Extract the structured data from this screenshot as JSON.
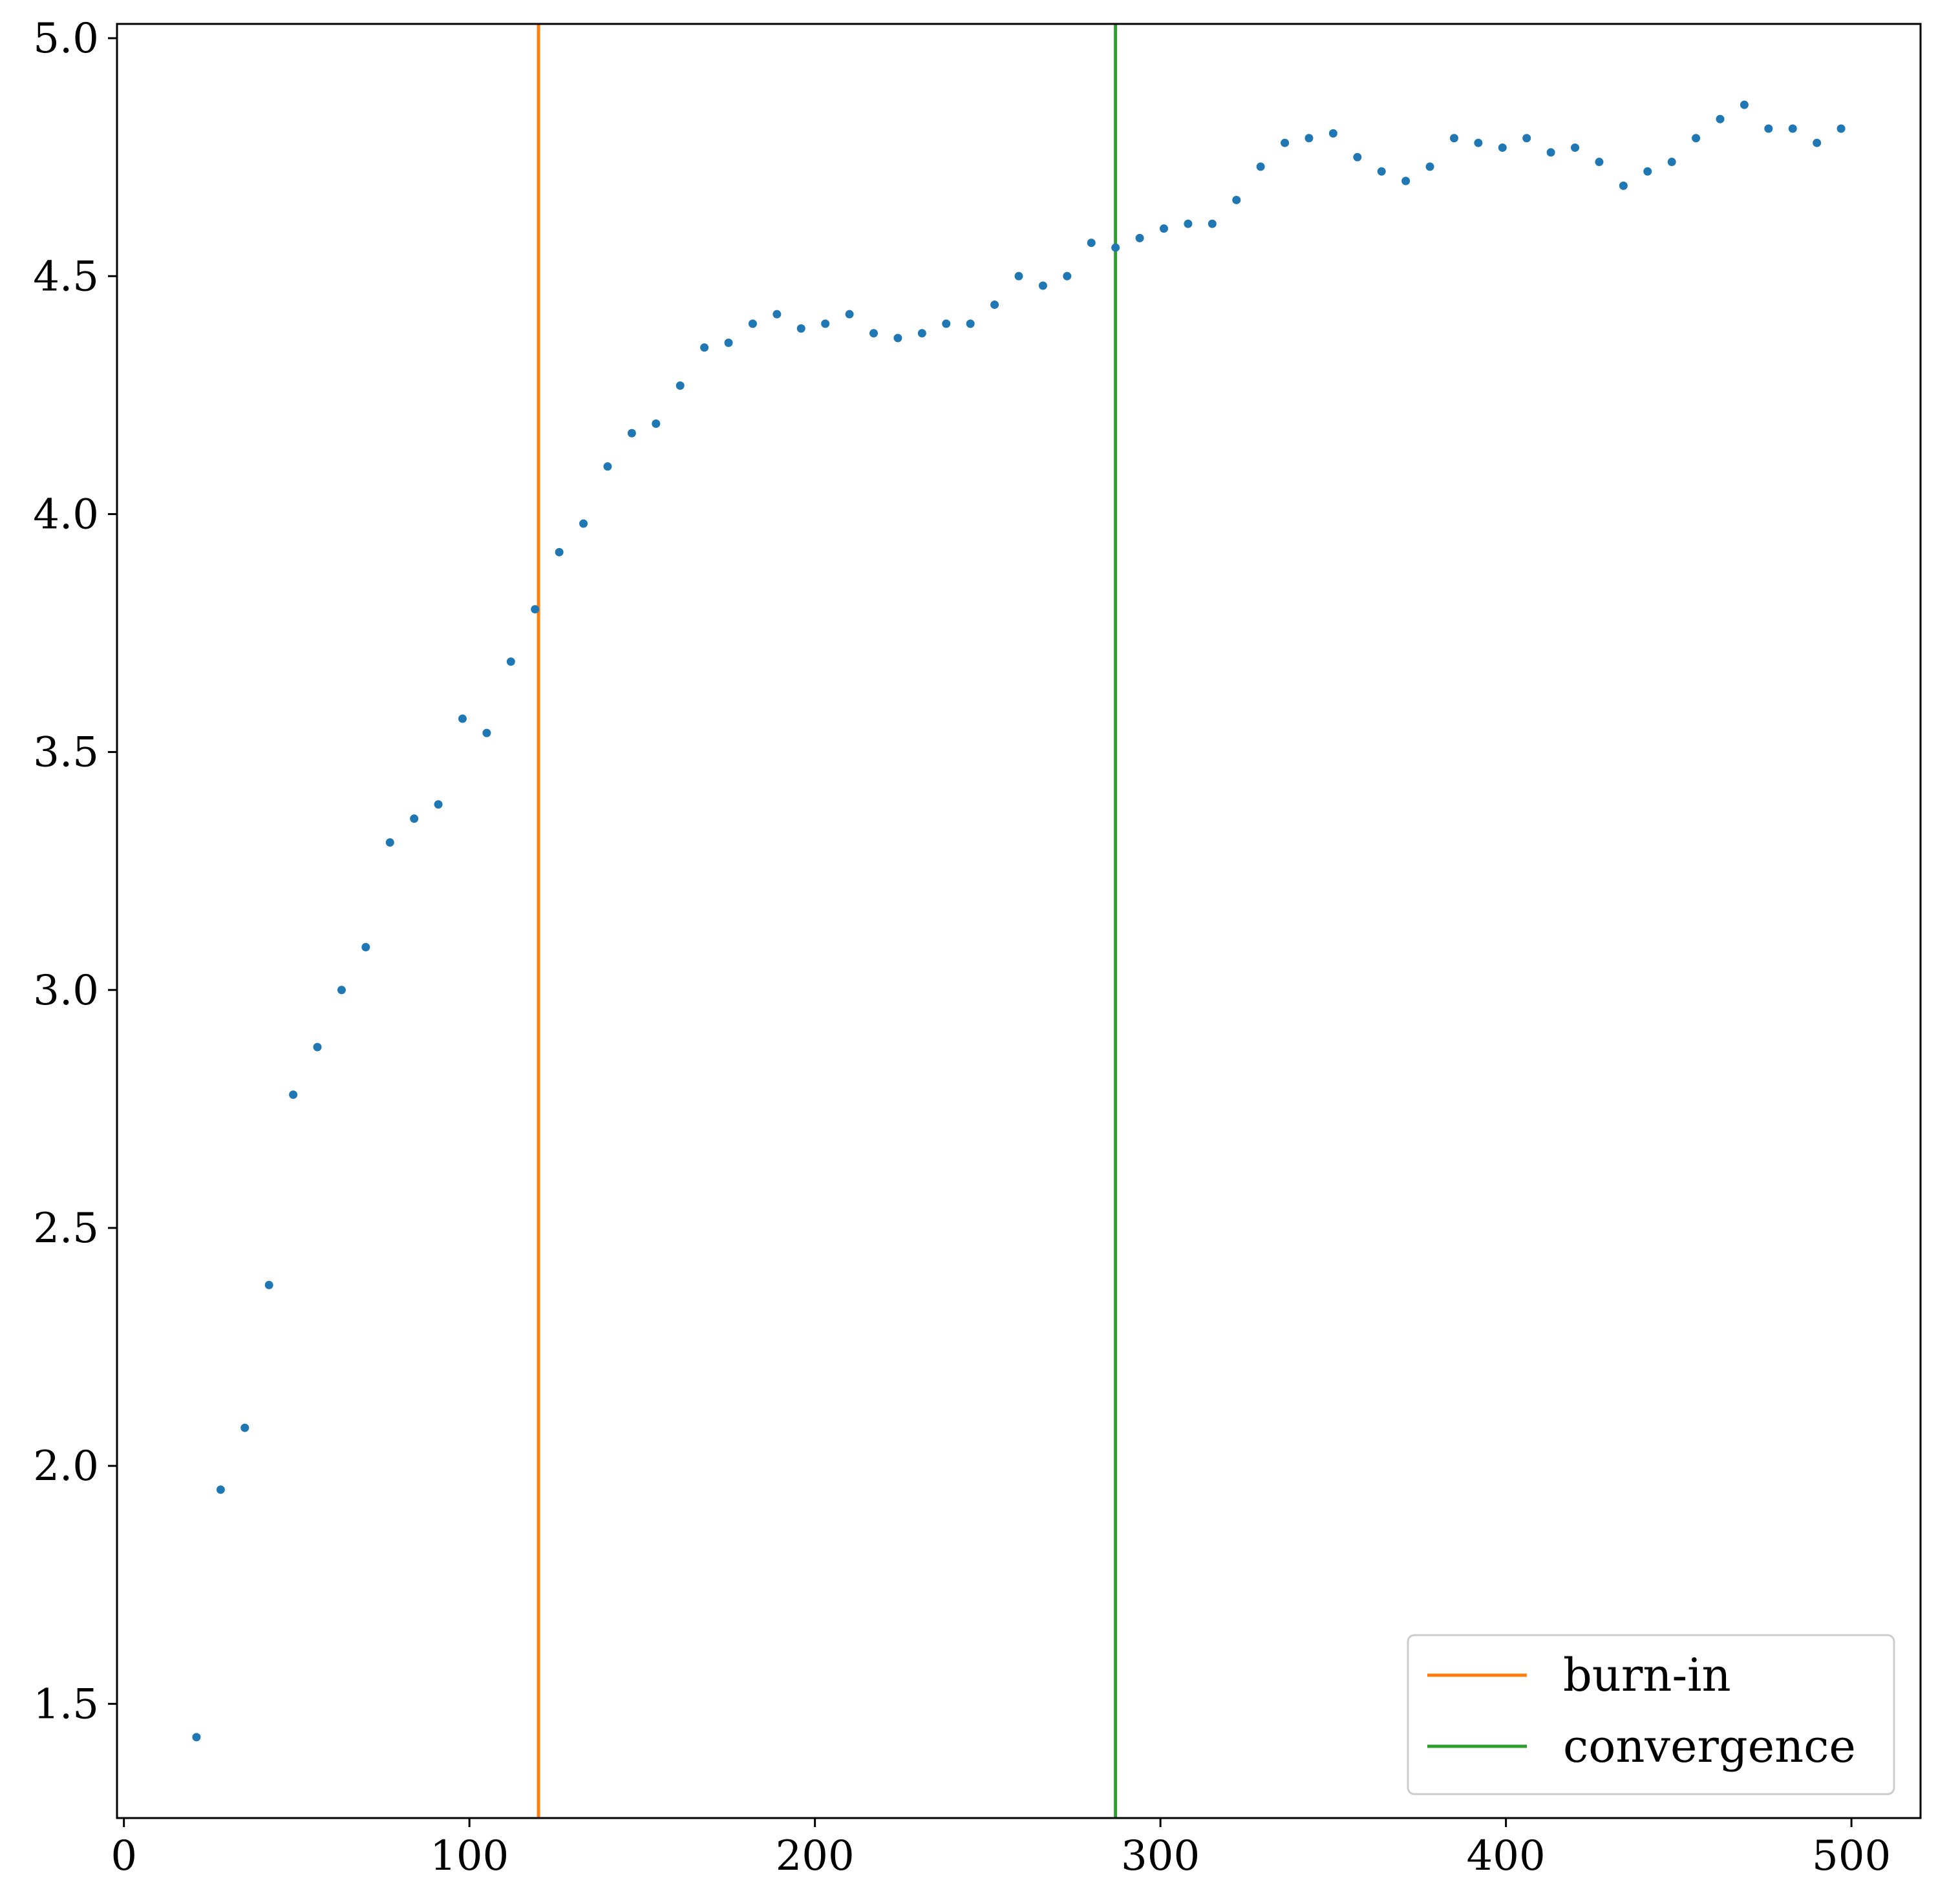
{
  "chart_data": {
    "type": "scatter",
    "title": "",
    "xlabel": "",
    "ylabel": "",
    "xlim": [
      -2,
      520
    ],
    "ylim": [
      1.26,
      5.03
    ],
    "x_ticks": [
      0,
      100,
      200,
      300,
      400,
      500
    ],
    "y_ticks": [
      1.5,
      2.0,
      2.5,
      3.0,
      3.5,
      4.0,
      4.5,
      5.0
    ],
    "x_tick_labels": [
      "0",
      "100",
      "200",
      "300",
      "400",
      "500"
    ],
    "y_tick_labels": [
      "1.5",
      "2.0",
      "2.5",
      "3.0",
      "3.5",
      "4.0",
      "4.5",
      "5.0"
    ],
    "grid": false,
    "legend_position": "bottom-right",
    "series": [
      {
        "color": "#1f77b4",
        "x": [
          21,
          28,
          35,
          42,
          49,
          56,
          63,
          70,
          77,
          84,
          91,
          98,
          105,
          112,
          119,
          126,
          133,
          140,
          147,
          154,
          161,
          168,
          175,
          182,
          189,
          196,
          203,
          210,
          217,
          224,
          231,
          238,
          245,
          252,
          259,
          266,
          273,
          280,
          287,
          294,
          301,
          308,
          315,
          322,
          329,
          336,
          343,
          350,
          357,
          364,
          371,
          378,
          385,
          392,
          399,
          406,
          413,
          420,
          427,
          434,
          441,
          448,
          455,
          462,
          469,
          476,
          483,
          490,
          497
        ],
        "y": [
          1.43,
          1.95,
          2.08,
          2.38,
          2.78,
          2.88,
          3.0,
          3.09,
          3.31,
          3.36,
          3.39,
          3.57,
          3.54,
          3.69,
          3.8,
          3.92,
          3.98,
          4.1,
          4.17,
          4.19,
          4.27,
          4.35,
          4.36,
          4.4,
          4.42,
          4.39,
          4.4,
          4.42,
          4.38,
          4.37,
          4.38,
          4.4,
          4.4,
          4.44,
          4.5,
          4.48,
          4.5,
          4.57,
          4.56,
          4.58,
          4.6,
          4.61,
          4.61,
          4.66,
          4.73,
          4.78,
          4.79,
          4.8,
          4.75,
          4.72,
          4.7,
          4.73,
          4.79,
          4.78,
          4.77,
          4.79,
          4.76,
          4.77,
          4.74,
          4.69,
          4.72,
          4.74,
          4.79,
          4.83,
          4.86,
          4.81,
          4.81,
          4.78,
          4.81
        ]
      }
    ],
    "vlines": [
      {
        "name": "burn-in",
        "x": 120,
        "color": "#ff7f0e"
      },
      {
        "name": "convergence",
        "x": 287,
        "color": "#2ca02c"
      }
    ],
    "legend": [
      {
        "label": "burn-in",
        "color": "#ff7f0e"
      },
      {
        "label": "convergence",
        "color": "#2ca02c"
      }
    ]
  }
}
